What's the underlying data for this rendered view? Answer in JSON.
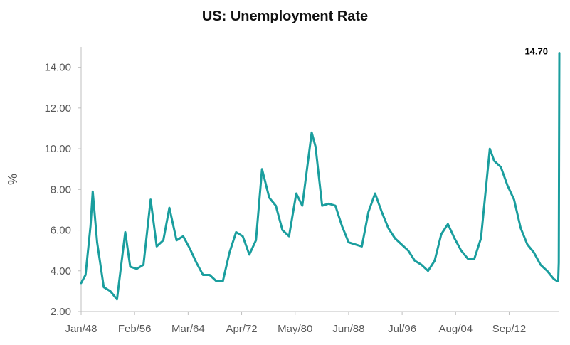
{
  "chart_data": {
    "type": "line",
    "title": "US: Unemployment Rate",
    "xlabel": "",
    "ylabel": "%",
    "ylim": [
      2.0,
      15.0
    ],
    "x_range": [
      "Jan/48",
      "Apr/20"
    ],
    "yticks": [
      "2.00",
      "4.00",
      "6.00",
      "8.00",
      "10.00",
      "12.00",
      "14.00"
    ],
    "xticks": [
      "Jan/48",
      "Feb/56",
      "Mar/64",
      "Apr/72",
      "May/80",
      "Jun/88",
      "Jul/96",
      "Aug/04",
      "Sep/12"
    ],
    "grid": false,
    "legend": "none",
    "line_color": "#1a9e9e",
    "annotation": "14.70",
    "series": [
      {
        "x": [
          "1948-01",
          "1948-09",
          "1949-06",
          "1949-10",
          "1950-06",
          "1951-06",
          "1952-06",
          "1953-06",
          "1954-09",
          "1955-06",
          "1956-06",
          "1957-06",
          "1958-07",
          "1959-06",
          "1960-06",
          "1961-05",
          "1962-06",
          "1963-06",
          "1964-06",
          "1965-06",
          "1966-06",
          "1967-06",
          "1968-06",
          "1969-06",
          "1970-06",
          "1971-06",
          "1972-06",
          "1973-06",
          "1974-06",
          "1975-05",
          "1976-06",
          "1977-06",
          "1978-06",
          "1979-06",
          "1980-07",
          "1981-06",
          "1982-11",
          "1983-06",
          "1984-06",
          "1985-06",
          "1986-06",
          "1987-06",
          "1988-06",
          "1989-06",
          "1990-06",
          "1991-06",
          "1992-06",
          "1993-06",
          "1994-06",
          "1995-06",
          "1996-06",
          "1997-06",
          "1998-06",
          "1999-06",
          "2000-06",
          "2001-06",
          "2002-06",
          "2003-06",
          "2004-06",
          "2005-06",
          "2006-06",
          "2007-06",
          "2008-06",
          "2009-10",
          "2010-06",
          "2011-06",
          "2012-06",
          "2013-06",
          "2014-06",
          "2015-06",
          "2016-06",
          "2017-06",
          "2018-06",
          "2019-06",
          "2019-12",
          "2020-02",
          "2020-03",
          "2020-04"
        ],
        "values": [
          3.4,
          3.8,
          6.2,
          7.9,
          5.4,
          3.2,
          3.0,
          2.6,
          5.9,
          4.2,
          4.1,
          4.3,
          7.5,
          5.2,
          5.5,
          7.1,
          5.5,
          5.7,
          5.1,
          4.4,
          3.8,
          3.8,
          3.5,
          3.5,
          4.9,
          5.9,
          5.7,
          4.8,
          5.5,
          9.0,
          7.6,
          7.2,
          6.0,
          5.7,
          7.8,
          7.2,
          10.8,
          10.1,
          7.2,
          7.3,
          7.2,
          6.2,
          5.4,
          5.3,
          5.2,
          6.9,
          7.8,
          6.9,
          6.1,
          5.6,
          5.3,
          5.0,
          4.5,
          4.3,
          4.0,
          4.5,
          5.8,
          6.3,
          5.6,
          5.0,
          4.6,
          4.6,
          5.6,
          10.0,
          9.4,
          9.1,
          8.2,
          7.5,
          6.1,
          5.3,
          4.9,
          4.3,
          4.0,
          3.6,
          3.5,
          3.5,
          4.4,
          14.7
        ]
      }
    ]
  }
}
